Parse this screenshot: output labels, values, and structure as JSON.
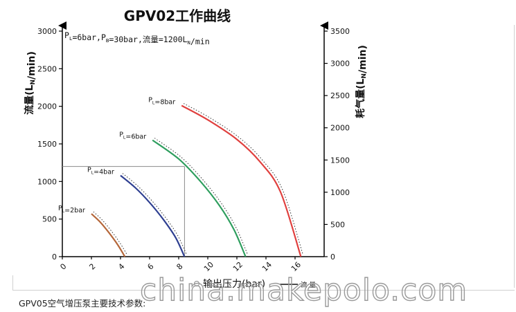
{
  "caption": "GPV05空气增压泵主要技术参数:",
  "watermark": "china.makepolo.com",
  "chart_data": {
    "type": "line",
    "title": "GPV02工作曲线",
    "xlabel": "输出压力(bar)",
    "ylabel_left": "流量(L_N/min)",
    "ylabel_right": "耗气量(L_N/min)",
    "legend_solid": "流  量",
    "xlim": [
      0,
      18
    ],
    "ylim": [
      0,
      3000
    ],
    "ylim_right": [
      0,
      3500
    ],
    "xticks": [
      0,
      2,
      4,
      6,
      8,
      10,
      12,
      14,
      16
    ],
    "yticks": [
      0,
      500,
      1000,
      1500,
      2000,
      2500,
      3000
    ],
    "yticks_right": [
      0,
      500,
      1000,
      1500,
      2000,
      2500,
      3000,
      3500
    ],
    "annotation": {
      "text": "P_L=6bar,P_B=30bar,流量=1200L_N/min",
      "point": {
        "x": 8.4,
        "y": 1200
      }
    },
    "series": [
      {
        "name": "P_L=2bar",
        "color": "#b5673a",
        "x": [
          2.0,
          2.6,
          3.2,
          3.8,
          4.3
        ],
        "y": [
          570,
          460,
          320,
          160,
          0
        ]
      },
      {
        "name": "P_L=4bar",
        "color": "#2e3f91",
        "x": [
          4.0,
          5.0,
          6.0,
          7.0,
          7.8,
          8.4
        ],
        "y": [
          1080,
          920,
          720,
          480,
          250,
          0
        ]
      },
      {
        "name": "P_L=6bar",
        "color": "#2e9e5e",
        "x": [
          6.2,
          8.0,
          9.5,
          10.8,
          11.8,
          12.6
        ],
        "y": [
          1550,
          1300,
          1000,
          680,
          360,
          0
        ]
      },
      {
        "name": "P_L=8bar",
        "color": "#e0403e",
        "x": [
          8.2,
          10.0,
          12.0,
          13.6,
          15.0,
          16.4
        ],
        "y": [
          2010,
          1820,
          1560,
          1260,
          860,
          0
        ]
      }
    ]
  }
}
